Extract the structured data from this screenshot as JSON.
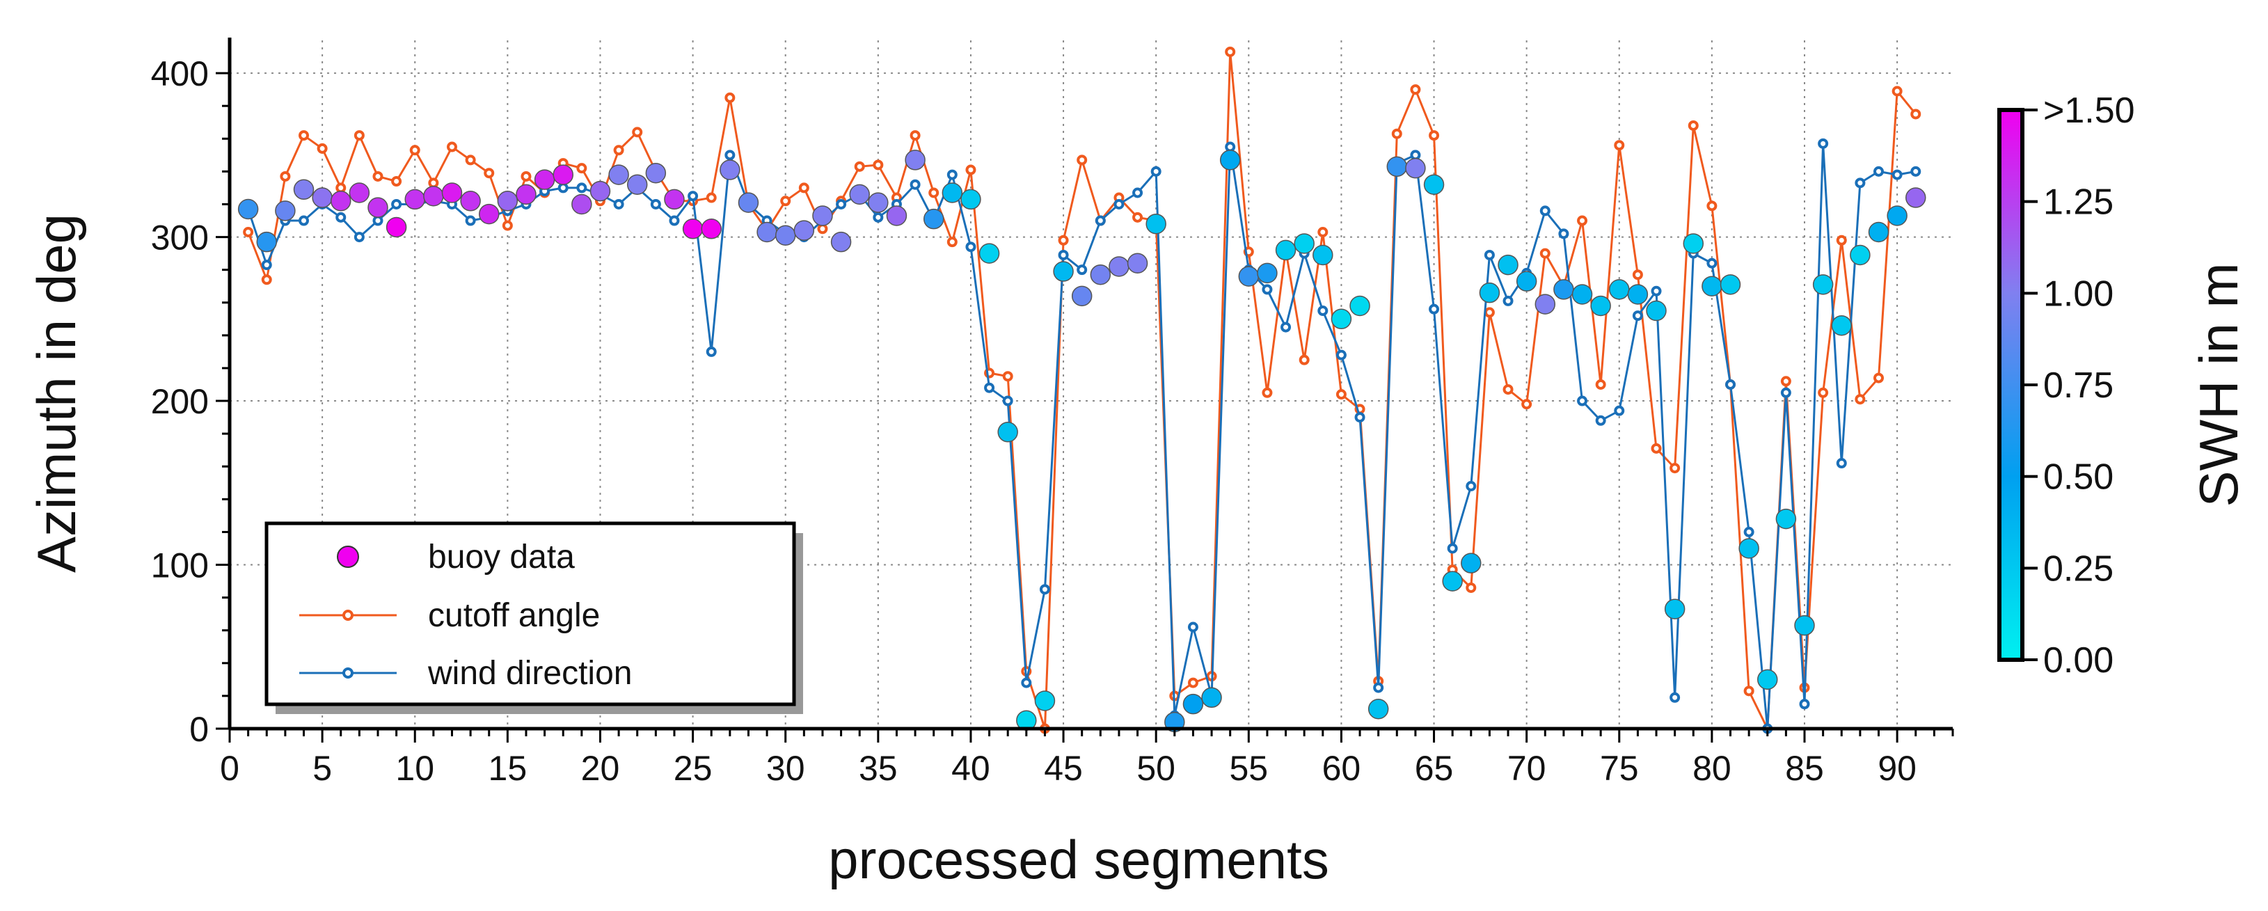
{
  "chart_data": {
    "type": "line",
    "xlabel": "processed segments",
    "ylabel": "Azimuth in deg",
    "xlim": [
      0,
      93
    ],
    "ylim": [
      0,
      420
    ],
    "xticks": [
      0,
      5,
      10,
      15,
      20,
      25,
      30,
      35,
      40,
      45,
      50,
      55,
      60,
      65,
      70,
      75,
      80,
      85,
      90
    ],
    "yticks": [
      0,
      100,
      200,
      300,
      400
    ],
    "grid": true,
    "legend_position": "bottom-left",
    "series": [
      {
        "name": "buoy data",
        "kind": "scatter-colored",
        "x": [
          1,
          2,
          3,
          4,
          5,
          6,
          7,
          8,
          9,
          10,
          11,
          12,
          13,
          14,
          15,
          16,
          17,
          18,
          19,
          20,
          21,
          22,
          23,
          24,
          25,
          26,
          27,
          28,
          29,
          30,
          31,
          32,
          33,
          34,
          35,
          36,
          37,
          38,
          39,
          40,
          41,
          42,
          43,
          44,
          45,
          46,
          47,
          48,
          49,
          50,
          51,
          52,
          53,
          54,
          55,
          56,
          57,
          58,
          59,
          60,
          61,
          62,
          63,
          64,
          65,
          66,
          67,
          68,
          69,
          70,
          71,
          72,
          73,
          74,
          75,
          76,
          77,
          78,
          79,
          80,
          81,
          82,
          83,
          84,
          85,
          86,
          87,
          88,
          89,
          90,
          91
        ],
        "values": [
          317,
          297,
          316,
          329,
          324,
          322,
          327,
          318,
          306,
          323,
          325,
          327,
          322,
          314,
          322,
          326,
          335,
          338,
          320,
          328,
          338,
          332,
          339,
          323,
          305,
          305,
          341,
          321,
          303,
          301,
          304,
          313,
          297,
          326,
          321,
          313,
          347,
          311,
          327,
          323,
          290,
          181,
          5,
          17,
          279,
          264,
          277,
          282,
          284,
          308,
          4,
          15,
          19,
          347,
          276,
          278,
          292,
          296,
          289,
          250,
          258,
          12,
          343,
          342,
          332,
          90,
          101,
          266,
          283,
          273,
          259,
          268,
          265,
          258,
          268,
          265,
          255,
          73,
          296,
          270,
          271,
          110,
          30,
          128,
          63,
          271,
          246,
          289,
          303,
          313,
          324
        ],
        "swh": [
          0.7,
          0.65,
          0.9,
          1.0,
          1.05,
          1.3,
          1.3,
          1.3,
          1.5,
          1.3,
          1.3,
          1.4,
          1.3,
          1.35,
          1.1,
          1.3,
          1.35,
          1.4,
          1.2,
          1.1,
          1.0,
          1.0,
          1.0,
          1.3,
          1.5,
          1.5,
          1.0,
          0.9,
          0.95,
          0.95,
          1.0,
          1.0,
          1.0,
          1.0,
          1.0,
          1.1,
          1.0,
          0.65,
          0.35,
          0.25,
          0.2,
          0.3,
          0.15,
          0.2,
          0.35,
          0.9,
          0.95,
          1.0,
          1.0,
          0.3,
          0.6,
          0.5,
          0.4,
          0.45,
          0.7,
          0.6,
          0.25,
          0.2,
          0.3,
          0.15,
          0.15,
          0.3,
          0.7,
          1.0,
          0.3,
          0.3,
          0.4,
          0.3,
          0.3,
          0.4,
          1.0,
          0.6,
          0.4,
          0.3,
          0.3,
          0.4,
          0.3,
          0.3,
          0.2,
          0.35,
          0.25,
          0.3,
          0.25,
          0.25,
          0.3,
          0.25,
          0.25,
          0.2,
          0.4,
          0.45,
          1.1
        ]
      },
      {
        "name": "cutoff angle",
        "kind": "line",
        "color": "#f05a1e",
        "x": [
          1,
          2,
          3,
          4,
          5,
          6,
          7,
          8,
          9,
          10,
          11,
          12,
          13,
          14,
          15,
          16,
          17,
          18,
          19,
          20,
          21,
          22,
          23,
          24,
          25,
          26,
          27,
          28,
          29,
          30,
          31,
          32,
          33,
          34,
          35,
          36,
          37,
          38,
          39,
          40,
          41,
          42,
          43,
          44,
          45,
          46,
          47,
          48,
          49,
          50,
          51,
          52,
          53,
          54,
          55,
          56,
          57,
          58,
          59,
          60,
          61,
          62,
          63,
          64,
          65,
          66,
          67,
          68,
          69,
          70,
          71,
          72,
          73,
          74,
          75,
          76,
          77,
          78,
          79,
          80,
          81,
          82,
          83,
          84,
          85,
          86,
          87,
          88,
          89,
          90,
          91
        ],
        "values": [
          303,
          274,
          337,
          362,
          354,
          330,
          362,
          337,
          334,
          353,
          333,
          355,
          347,
          339,
          307,
          337,
          327,
          345,
          342,
          322,
          353,
          364,
          340,
          322,
          322,
          324,
          385,
          320,
          304,
          322,
          330,
          305,
          322,
          343,
          344,
          324,
          362,
          327,
          297,
          341,
          217,
          215,
          35,
          0,
          298,
          347,
          310,
          324,
          312,
          310,
          20,
          28,
          32,
          413,
          291,
          205,
          292,
          225,
          303,
          204,
          195,
          29,
          363,
          390,
          362,
          97,
          86,
          254,
          207,
          198,
          290,
          270,
          310,
          210,
          356,
          277,
          171,
          159,
          368,
          319,
          210,
          23,
          0,
          212,
          25,
          205,
          298,
          201,
          214,
          389,
          375
        ]
      },
      {
        "name": "wind direction",
        "kind": "line",
        "color": "#1a6fb8",
        "x": [
          1,
          2,
          3,
          4,
          5,
          6,
          7,
          8,
          9,
          10,
          11,
          12,
          13,
          14,
          15,
          16,
          17,
          18,
          19,
          20,
          21,
          22,
          23,
          24,
          25,
          26,
          27,
          28,
          29,
          30,
          31,
          32,
          33,
          34,
          35,
          36,
          37,
          38,
          39,
          40,
          41,
          42,
          43,
          44,
          45,
          46,
          47,
          48,
          49,
          50,
          51,
          52,
          53,
          54,
          55,
          56,
          57,
          58,
          59,
          60,
          61,
          62,
          63,
          64,
          65,
          66,
          67,
          68,
          69,
          70,
          71,
          72,
          73,
          74,
          75,
          76,
          77,
          78,
          79,
          80,
          81,
          82,
          83,
          84,
          85,
          86,
          87,
          88,
          89,
          90,
          91
        ],
        "values": [
          317,
          283,
          310,
          310,
          320,
          312,
          300,
          310,
          320,
          320,
          322,
          320,
          310,
          312,
          316,
          320,
          328,
          330,
          330,
          326,
          320,
          330,
          320,
          310,
          325,
          230,
          350,
          320,
          310,
          302,
          300,
          310,
          320,
          326,
          312,
          320,
          332,
          310,
          338,
          294,
          208,
          200,
          28,
          85,
          289,
          280,
          310,
          320,
          327,
          340,
          8,
          62,
          20,
          355,
          280,
          268,
          245,
          290,
          255,
          228,
          190,
          25,
          345,
          350,
          256,
          110,
          148,
          289,
          261,
          278,
          316,
          302,
          200,
          188,
          194,
          252,
          267,
          19,
          290,
          284,
          210,
          120,
          0,
          205,
          15,
          357,
          162,
          333,
          340,
          338,
          340
        ]
      }
    ],
    "colorbar": {
      "label": "SWH in m",
      "range": [
        0.0,
        1.5
      ],
      "ticks": [
        "0.00",
        "0.25",
        "0.50",
        "0.75",
        "1.00",
        "1.25",
        ">1.50"
      ],
      "colormap": [
        "#00f0f0",
        "#00a0f0",
        "#8080f0",
        "#f000f0"
      ]
    }
  }
}
